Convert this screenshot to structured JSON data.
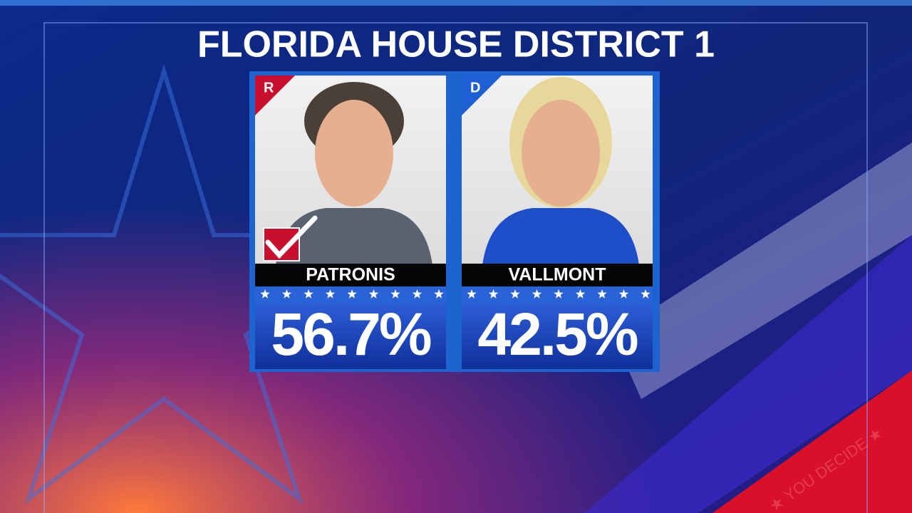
{
  "header": {
    "title": "FLORIDA HOUSE DISTRICT 1"
  },
  "candidates": [
    {
      "party": "R",
      "party_color": "#c8102e",
      "name": "PATRONIS",
      "percent": "56.7%",
      "winner": true
    },
    {
      "party": "D",
      "party_color": "#1e5fd6",
      "name": "VALLMONT",
      "percent": "42.5%",
      "winner": false
    }
  ],
  "background_text": "★ YOU DECIDE ★"
}
